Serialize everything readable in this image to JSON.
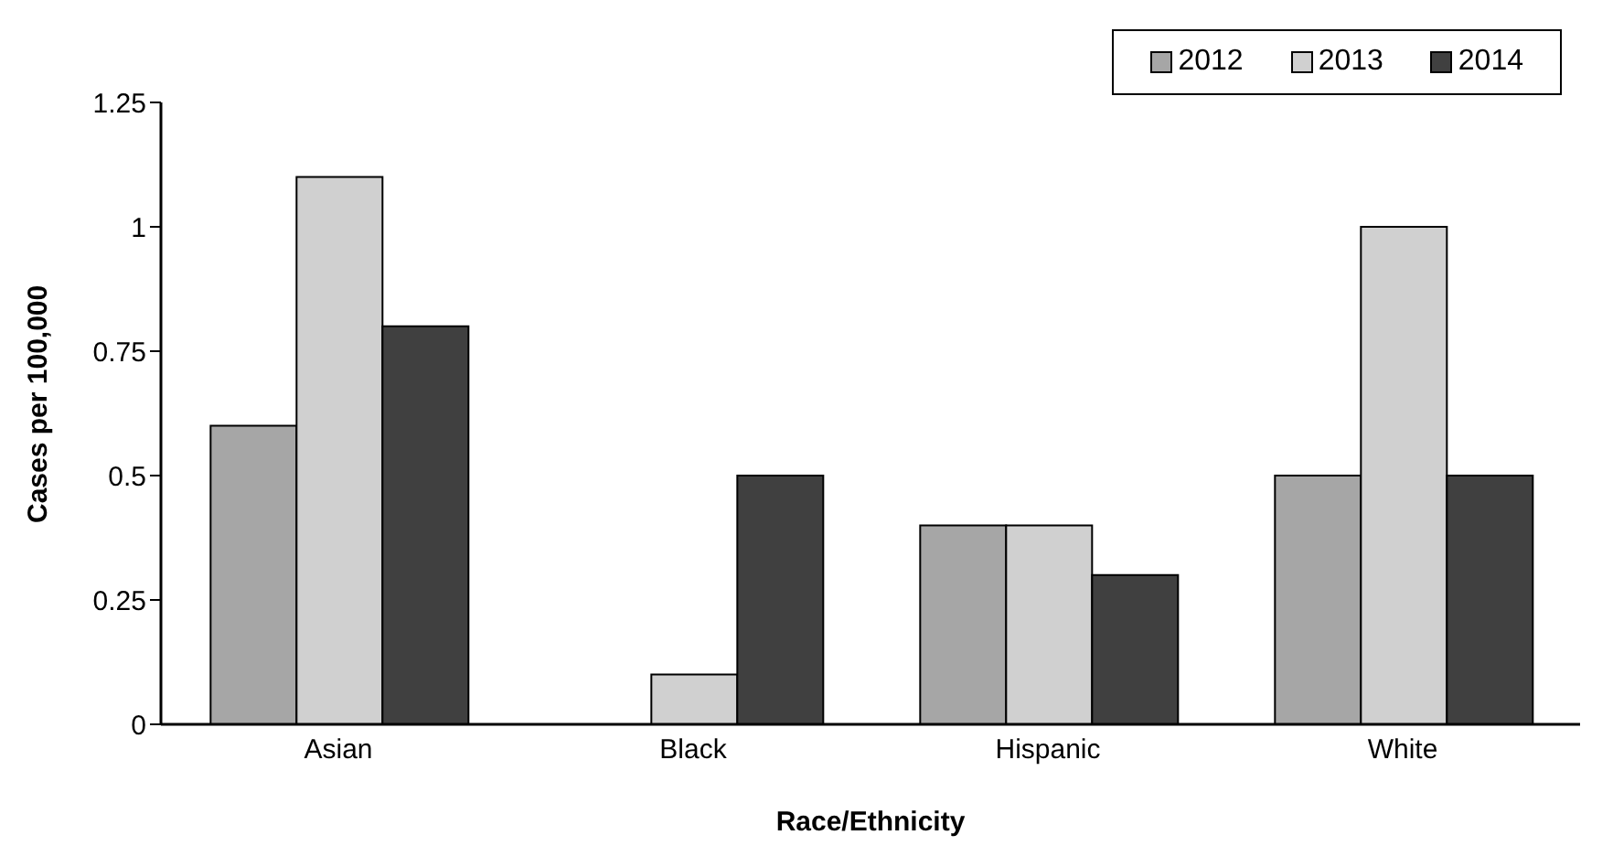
{
  "chart_data": {
    "type": "bar",
    "xlabel": "Race/Ethnicity",
    "ylabel": "Cases per 100,000",
    "categories": [
      "Asian",
      "Black",
      "Hispanic",
      "White"
    ],
    "series": [
      {
        "name": "2012",
        "color": "#a6a6a6",
        "values": [
          0.6,
          0,
          0.4,
          0.5
        ]
      },
      {
        "name": "2013",
        "color": "#d0d0d0",
        "values": [
          1.1,
          0.1,
          0.4,
          1.0
        ]
      },
      {
        "name": "2014",
        "color": "#404040",
        "values": [
          0.8,
          0.5,
          0.3,
          0.5
        ]
      }
    ],
    "ylim": [
      0,
      1.25
    ],
    "yticks": [
      0,
      0.25,
      0.5,
      0.75,
      1,
      1.25
    ],
    "grid": false,
    "legend": "top right"
  }
}
